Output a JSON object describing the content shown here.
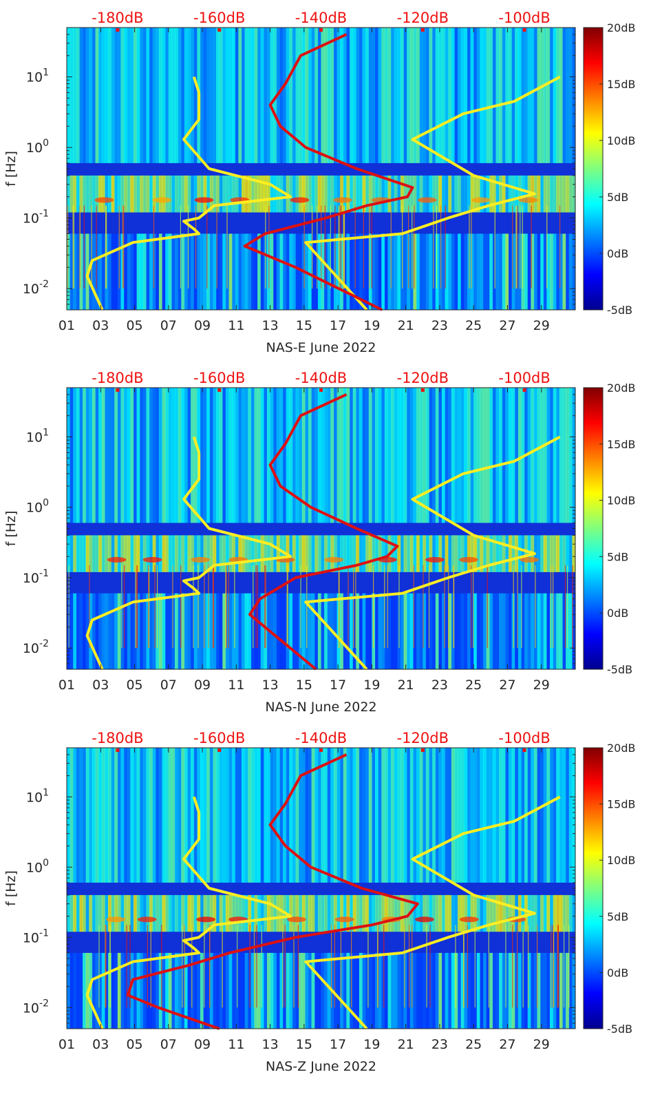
{
  "chart_data": [
    {
      "type": "heatmap",
      "xlabel": "NAS-E June 2022",
      "ylabel": "f [Hz]",
      "x_ticks": [
        "01",
        "03",
        "05",
        "07",
        "09",
        "11",
        "13",
        "15",
        "17",
        "19",
        "21",
        "23",
        "25",
        "27",
        "29"
      ],
      "x_range_days": [
        1,
        31
      ],
      "y_scale": "log",
      "y_range_hz": [
        0.005,
        50
      ],
      "y_ticks": [
        {
          "base": "10",
          "exp": "-2"
        },
        {
          "base": "10",
          "exp": "-1"
        },
        {
          "base": "10",
          "exp": "0"
        },
        {
          "base": "10",
          "exp": "1"
        }
      ],
      "top_axis_ticks": [
        "-180dB",
        "-160dB",
        "-140dB",
        "-120dB",
        "-100dB"
      ],
      "top_axis_range_db": [
        -190,
        -90
      ],
      "colorbar": {
        "range_db": [
          -5,
          20
        ],
        "labels": [
          "20dB",
          "15dB",
          "10dB",
          "5dB",
          "0dB",
          "-5dB"
        ],
        "colormap": "jet"
      },
      "noise_models": {
        "color": "#ffee22",
        "low_model": [
          {
            "f": 0.005,
            "db": -183
          },
          {
            "f": 0.015,
            "db": -186
          },
          {
            "f": 0.025,
            "db": -185
          },
          {
            "f": 0.045,
            "db": -177
          },
          {
            "f": 0.06,
            "db": -164
          },
          {
            "f": 0.07,
            "db": -165
          },
          {
            "f": 0.09,
            "db": -167
          },
          {
            "f": 0.1,
            "db": -164
          },
          {
            "f": 0.15,
            "db": -161
          },
          {
            "f": 0.2,
            "db": -146
          },
          {
            "f": 0.3,
            "db": -150
          },
          {
            "f": 0.5,
            "db": -162
          },
          {
            "f": 1.3,
            "db": -167
          },
          {
            "f": 2.5,
            "db": -164
          },
          {
            "f": 6,
            "db": -164
          },
          {
            "f": 10,
            "db": -165
          }
        ],
        "high_model": [
          {
            "f": 0.005,
            "db": -131
          },
          {
            "f": 0.045,
            "db": -143
          },
          {
            "f": 0.06,
            "db": -124
          },
          {
            "f": 0.1,
            "db": -115
          },
          {
            "f": 0.15,
            "db": -107
          },
          {
            "f": 0.22,
            "db": -98
          },
          {
            "f": 0.4,
            "db": -110
          },
          {
            "f": 1.3,
            "db": -122
          },
          {
            "f": 3,
            "db": -112
          },
          {
            "f": 4.5,
            "db": -102
          },
          {
            "f": 10,
            "db": -93
          }
        ]
      },
      "median_psd": {
        "color": "#dd1111",
        "points": [
          {
            "f": 0.005,
            "db": -128
          },
          {
            "f": 0.02,
            "db": -145
          },
          {
            "f": 0.04,
            "db": -155
          },
          {
            "f": 0.06,
            "db": -151
          },
          {
            "f": 0.1,
            "db": -139
          },
          {
            "f": 0.15,
            "db": -131
          },
          {
            "f": 0.2,
            "db": -123
          },
          {
            "f": 0.27,
            "db": -122
          },
          {
            "f": 0.5,
            "db": -133
          },
          {
            "f": 1,
            "db": -143
          },
          {
            "f": 2,
            "db": -148
          },
          {
            "f": 4,
            "db": -150
          },
          {
            "f": 8,
            "db": -147
          },
          {
            "f": 20,
            "db": -144
          },
          {
            "f": 40,
            "db": -135
          }
        ]
      }
    },
    {
      "type": "heatmap",
      "xlabel": "NAS-N June 2022",
      "ylabel": "f [Hz]",
      "x_ticks": [
        "01",
        "03",
        "05",
        "07",
        "09",
        "11",
        "13",
        "15",
        "17",
        "19",
        "21",
        "23",
        "25",
        "27",
        "29"
      ],
      "x_range_days": [
        1,
        31
      ],
      "y_scale": "log",
      "y_range_hz": [
        0.005,
        50
      ],
      "y_ticks": [
        {
          "base": "10",
          "exp": "-2"
        },
        {
          "base": "10",
          "exp": "-1"
        },
        {
          "base": "10",
          "exp": "0"
        },
        {
          "base": "10",
          "exp": "1"
        }
      ],
      "top_axis_ticks": [
        "-180dB",
        "-160dB",
        "-140dB",
        "-120dB",
        "-100dB"
      ],
      "top_axis_range_db": [
        -190,
        -90
      ],
      "colorbar": {
        "range_db": [
          -5,
          20
        ],
        "labels": [
          "20dB",
          "15dB",
          "10dB",
          "5dB",
          "0dB",
          "-5dB"
        ],
        "colormap": "jet"
      },
      "noise_models": {
        "color": "#ffee22",
        "low_model": [
          {
            "f": 0.005,
            "db": -183
          },
          {
            "f": 0.015,
            "db": -186
          },
          {
            "f": 0.025,
            "db": -185
          },
          {
            "f": 0.045,
            "db": -177
          },
          {
            "f": 0.06,
            "db": -164
          },
          {
            "f": 0.07,
            "db": -165
          },
          {
            "f": 0.09,
            "db": -167
          },
          {
            "f": 0.1,
            "db": -164
          },
          {
            "f": 0.15,
            "db": -161
          },
          {
            "f": 0.2,
            "db": -146
          },
          {
            "f": 0.3,
            "db": -150
          },
          {
            "f": 0.5,
            "db": -162
          },
          {
            "f": 1.3,
            "db": -167
          },
          {
            "f": 2.5,
            "db": -164
          },
          {
            "f": 6,
            "db": -164
          },
          {
            "f": 10,
            "db": -165
          }
        ],
        "high_model": [
          {
            "f": 0.005,
            "db": -131
          },
          {
            "f": 0.045,
            "db": -143
          },
          {
            "f": 0.06,
            "db": -124
          },
          {
            "f": 0.1,
            "db": -115
          },
          {
            "f": 0.15,
            "db": -107
          },
          {
            "f": 0.22,
            "db": -98
          },
          {
            "f": 0.4,
            "db": -110
          },
          {
            "f": 1.3,
            "db": -122
          },
          {
            "f": 3,
            "db": -112
          },
          {
            "f": 4.5,
            "db": -102
          },
          {
            "f": 10,
            "db": -93
          }
        ]
      },
      "median_psd": {
        "color": "#dd1111",
        "points": [
          {
            "f": 0.005,
            "db": -141
          },
          {
            "f": 0.015,
            "db": -149
          },
          {
            "f": 0.03,
            "db": -154
          },
          {
            "f": 0.05,
            "db": -152
          },
          {
            "f": 0.1,
            "db": -145
          },
          {
            "f": 0.15,
            "db": -133
          },
          {
            "f": 0.2,
            "db": -127
          },
          {
            "f": 0.28,
            "db": -125
          },
          {
            "f": 0.5,
            "db": -133
          },
          {
            "f": 1,
            "db": -142
          },
          {
            "f": 2,
            "db": -148
          },
          {
            "f": 4,
            "db": -150
          },
          {
            "f": 8,
            "db": -147
          },
          {
            "f": 20,
            "db": -144
          },
          {
            "f": 40,
            "db": -135
          }
        ]
      }
    },
    {
      "type": "heatmap",
      "xlabel": "NAS-Z June 2022",
      "ylabel": "f [Hz]",
      "x_ticks": [
        "01",
        "03",
        "05",
        "07",
        "09",
        "11",
        "13",
        "15",
        "17",
        "19",
        "21",
        "23",
        "25",
        "27",
        "29"
      ],
      "x_range_days": [
        1,
        31
      ],
      "y_scale": "log",
      "y_range_hz": [
        0.005,
        50
      ],
      "y_ticks": [
        {
          "base": "10",
          "exp": "-2"
        },
        {
          "base": "10",
          "exp": "-1"
        },
        {
          "base": "10",
          "exp": "0"
        },
        {
          "base": "10",
          "exp": "1"
        }
      ],
      "top_axis_ticks": [
        "-180dB",
        "-160dB",
        "-140dB",
        "-120dB",
        "-100dB"
      ],
      "top_axis_range_db": [
        -190,
        -90
      ],
      "colorbar": {
        "range_db": [
          -5,
          20
        ],
        "labels": [
          "20dB",
          "15dB",
          "10dB",
          "5dB",
          "0dB",
          "-5dB"
        ],
        "colormap": "jet"
      },
      "noise_models": {
        "color": "#ffee22",
        "low_model": [
          {
            "f": 0.005,
            "db": -183
          },
          {
            "f": 0.015,
            "db": -186
          },
          {
            "f": 0.025,
            "db": -185
          },
          {
            "f": 0.045,
            "db": -177
          },
          {
            "f": 0.06,
            "db": -164
          },
          {
            "f": 0.07,
            "db": -165
          },
          {
            "f": 0.09,
            "db": -167
          },
          {
            "f": 0.1,
            "db": -164
          },
          {
            "f": 0.15,
            "db": -161
          },
          {
            "f": 0.2,
            "db": -146
          },
          {
            "f": 0.3,
            "db": -150
          },
          {
            "f": 0.5,
            "db": -162
          },
          {
            "f": 1.3,
            "db": -167
          },
          {
            "f": 2.5,
            "db": -164
          },
          {
            "f": 6,
            "db": -164
          },
          {
            "f": 10,
            "db": -165
          }
        ],
        "high_model": [
          {
            "f": 0.005,
            "db": -131
          },
          {
            "f": 0.045,
            "db": -143
          },
          {
            "f": 0.06,
            "db": -124
          },
          {
            "f": 0.1,
            "db": -115
          },
          {
            "f": 0.15,
            "db": -107
          },
          {
            "f": 0.22,
            "db": -98
          },
          {
            "f": 0.4,
            "db": -110
          },
          {
            "f": 1.3,
            "db": -122
          },
          {
            "f": 3,
            "db": -112
          },
          {
            "f": 4.5,
            "db": -102
          },
          {
            "f": 10,
            "db": -93
          }
        ]
      },
      "median_psd": {
        "color": "#dd1111",
        "points": [
          {
            "f": 0.005,
            "db": -160
          },
          {
            "f": 0.01,
            "db": -172
          },
          {
            "f": 0.015,
            "db": -178
          },
          {
            "f": 0.025,
            "db": -177
          },
          {
            "f": 0.04,
            "db": -166
          },
          {
            "f": 0.06,
            "db": -158
          },
          {
            "f": 0.1,
            "db": -145
          },
          {
            "f": 0.15,
            "db": -130
          },
          {
            "f": 0.2,
            "db": -123
          },
          {
            "f": 0.3,
            "db": -121
          },
          {
            "f": 0.5,
            "db": -132
          },
          {
            "f": 1,
            "db": -142
          },
          {
            "f": 2,
            "db": -147
          },
          {
            "f": 4,
            "db": -150
          },
          {
            "f": 8,
            "db": -147
          },
          {
            "f": 20,
            "db": -144
          },
          {
            "f": 40,
            "db": -135
          }
        ]
      }
    }
  ]
}
